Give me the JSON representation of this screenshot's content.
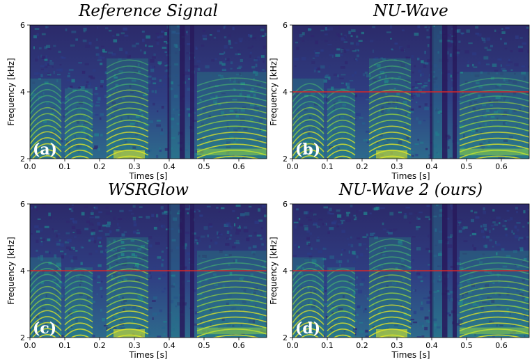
{
  "chart_data": [
    {
      "type": "heatmap",
      "title": "Reference Signal",
      "panel_label": "(a)",
      "xlabel": "Times [s]",
      "ylabel": "Frequency [kHz]",
      "xlim": [
        0.0,
        0.68
      ],
      "ylim": [
        2,
        6
      ],
      "xticks": [
        "0.0",
        "0.1",
        "0.2",
        "0.3",
        "0.4",
        "0.5",
        "0.6"
      ],
      "yticks": [
        "2",
        "4",
        "6"
      ],
      "cutoff_khz": null,
      "colormap": "viridis"
    },
    {
      "type": "heatmap",
      "title": "NU-Wave",
      "panel_label": "(b)",
      "xlabel": "Times [s]",
      "ylabel": "Frequency [kHz]",
      "xlim": [
        0.0,
        0.68
      ],
      "ylim": [
        2,
        6
      ],
      "xticks": [
        "0.0",
        "0.1",
        "0.2",
        "0.3",
        "0.4",
        "0.5",
        "0.6"
      ],
      "yticks": [
        "2",
        "4",
        "6"
      ],
      "cutoff_khz": 4,
      "colormap": "viridis"
    },
    {
      "type": "heatmap",
      "title": "WSRGlow",
      "panel_label": "(c)",
      "xlabel": "Times [s]",
      "ylabel": "Frequency [kHz]",
      "xlim": [
        0.0,
        0.68
      ],
      "ylim": [
        2,
        6
      ],
      "xticks": [
        "0.0",
        "0.1",
        "0.2",
        "0.3",
        "0.4",
        "0.5",
        "0.6"
      ],
      "yticks": [
        "2",
        "4",
        "6"
      ],
      "cutoff_khz": 4,
      "colormap": "viridis"
    },
    {
      "type": "heatmap",
      "title": "NU-Wave 2 (ours)",
      "panel_label": "(d)",
      "xlabel": "Times [s]",
      "ylabel": "Frequency [kHz]",
      "xlim": [
        0.0,
        0.68
      ],
      "ylim": [
        2,
        6
      ],
      "xticks": [
        "0.0",
        "0.1",
        "0.2",
        "0.3",
        "0.4",
        "0.5",
        "0.6"
      ],
      "yticks": [
        "2",
        "4",
        "6"
      ],
      "cutoff_khz": 4,
      "colormap": "viridis"
    }
  ],
  "colors": {
    "cutoff_line": "#d62728",
    "background_dark": "#2d2f6b",
    "harmonic": "#b5de2b",
    "mid": "#2a8c8a"
  }
}
